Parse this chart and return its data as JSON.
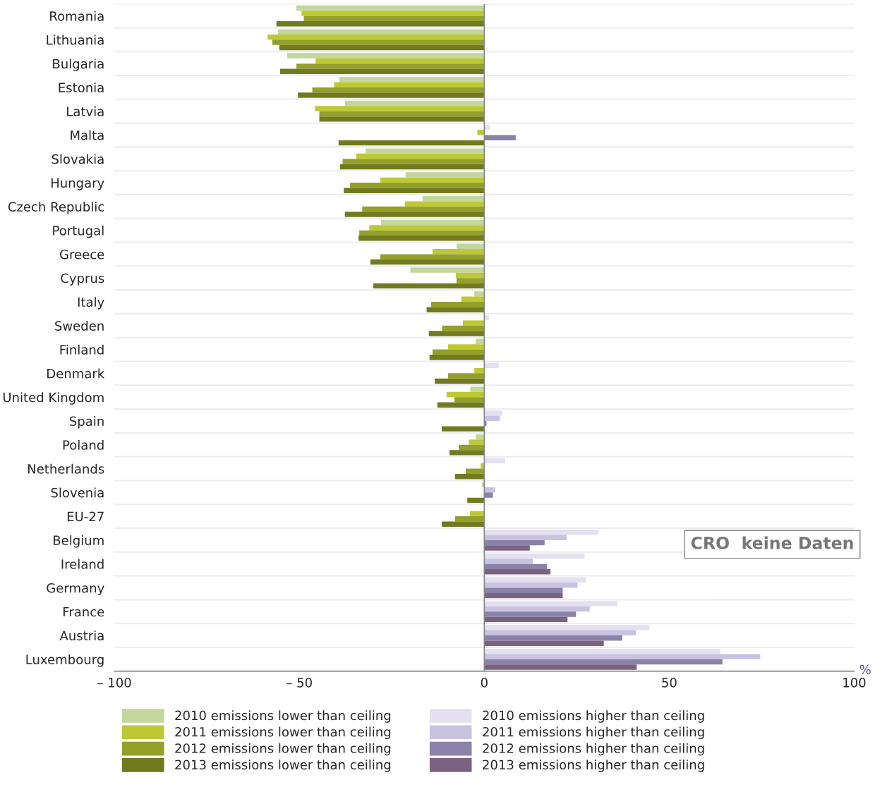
{
  "chart_data": {
    "type": "bar",
    "orientation": "horizontal",
    "xlabel": "%",
    "categories": [
      "Romania",
      "Lithuania",
      "Bulgaria",
      "Estonia",
      "Latvia",
      "Malta",
      "Slovakia",
      "Hungary",
      "Czech Republic",
      "Portugal",
      "Greece",
      "Cyprus",
      "Italy",
      "Sweden",
      "Finland",
      "Denmark",
      "United Kingdom",
      "Spain",
      "Poland",
      "Netherlands",
      "Slovenia",
      "EU-27",
      "Belgium",
      "Ireland",
      "Germany",
      "France",
      "Austria",
      "Luxembourg"
    ],
    "series": [
      {
        "name": "2010 emissions lower than ceiling",
        "color": "#c3d69b",
        "values": [
          -50.8,
          -55.8,
          -53.3,
          -39.2,
          -37.7,
          null,
          -32.1,
          -21.3,
          -16.7,
          -27.9,
          -7.5,
          -20,
          -2.7,
          null,
          -2.3,
          null,
          -3.8,
          null,
          -2.3,
          null,
          -0.6,
          null,
          null,
          null,
          null,
          null,
          null,
          null
        ]
      },
      {
        "name": "2011 emissions lower than ceiling",
        "color": "#bdc934",
        "values": [
          -49.4,
          -58.6,
          -45.6,
          -40.6,
          -45.8,
          -1.9,
          -34.6,
          -28.1,
          -21.5,
          -31.1,
          -14,
          -7.7,
          -6.2,
          -5.8,
          -9.8,
          -2.7,
          -10.2,
          null,
          -4.2,
          -1,
          null,
          -3.9,
          null,
          null,
          null,
          null,
          null,
          null
        ]
      },
      {
        "name": "2012 emissions lower than ceiling",
        "color": "#93a02a",
        "values": [
          -48.8,
          -57.3,
          -50.8,
          -46.5,
          -44.6,
          null,
          -38.3,
          -36.3,
          -33,
          -33.8,
          -28.1,
          -7.5,
          -14.4,
          -11.4,
          -14,
          -9.8,
          -8.1,
          null,
          -6.9,
          -5,
          null,
          -7.9,
          null,
          null,
          null,
          null,
          null,
          null
        ]
      },
      {
        "name": "2013 emissions lower than ceiling",
        "color": "#717a1e",
        "values": [
          -56.2,
          -55.4,
          -55.2,
          -50.4,
          -44.6,
          -39.4,
          -39,
          -38,
          -37.7,
          -34,
          -30.8,
          -30,
          -15.6,
          -15,
          -14.8,
          -13.4,
          -12.7,
          -11.5,
          -9.4,
          -7.9,
          -4.6,
          -11.5,
          null,
          null,
          null,
          null,
          null,
          null
        ]
      },
      {
        "name": "2010 emissions higher than ceiling",
        "color": "#e4e0f0",
        "values": [
          null,
          null,
          null,
          null,
          null,
          1.5,
          null,
          null,
          null,
          null,
          null,
          null,
          null,
          1.3,
          null,
          3.9,
          null,
          4.8,
          null,
          5.6,
          null,
          null,
          30.8,
          27.1,
          27.5,
          36,
          44.6,
          63.8
        ]
      },
      {
        "name": "2011 emissions higher than ceiling",
        "color": "#c9c3e2",
        "values": [
          null,
          null,
          null,
          null,
          null,
          null,
          null,
          null,
          null,
          null,
          null,
          null,
          null,
          null,
          null,
          null,
          null,
          4.2,
          null,
          null,
          2.9,
          null,
          22.3,
          13.1,
          25.2,
          28.5,
          41,
          74.6
        ]
      },
      {
        "name": "2012 emissions higher than ceiling",
        "color": "#8a82a8",
        "values": [
          null,
          null,
          null,
          null,
          null,
          8.5,
          null,
          null,
          null,
          null,
          null,
          null,
          null,
          null,
          null,
          null,
          null,
          0.6,
          null,
          null,
          2.3,
          null,
          16.3,
          16.9,
          21.2,
          24.8,
          37.3,
          64.4
        ]
      },
      {
        "name": "2013 emissions higher than ceiling",
        "color": "#7b6281",
        "values": [
          null,
          null,
          null,
          null,
          null,
          null,
          null,
          null,
          null,
          null,
          null,
          null,
          null,
          null,
          null,
          null,
          null,
          null,
          null,
          null,
          null,
          null,
          12.3,
          17.9,
          21.2,
          22.5,
          32.3,
          41.2
        ]
      }
    ],
    "xlim": [
      -100,
      100
    ],
    "xticks": [
      {
        "value": -100,
        "label": "– 100"
      },
      {
        "value": -50,
        "label": "– 50"
      },
      0,
      50,
      100
    ],
    "ref_lines": [
      {
        "axis": "x",
        "value": 0,
        "color": "#888888"
      }
    ],
    "annotations": [
      "CRO  keine Daten"
    ],
    "grid": "y",
    "legend": "bottom"
  }
}
